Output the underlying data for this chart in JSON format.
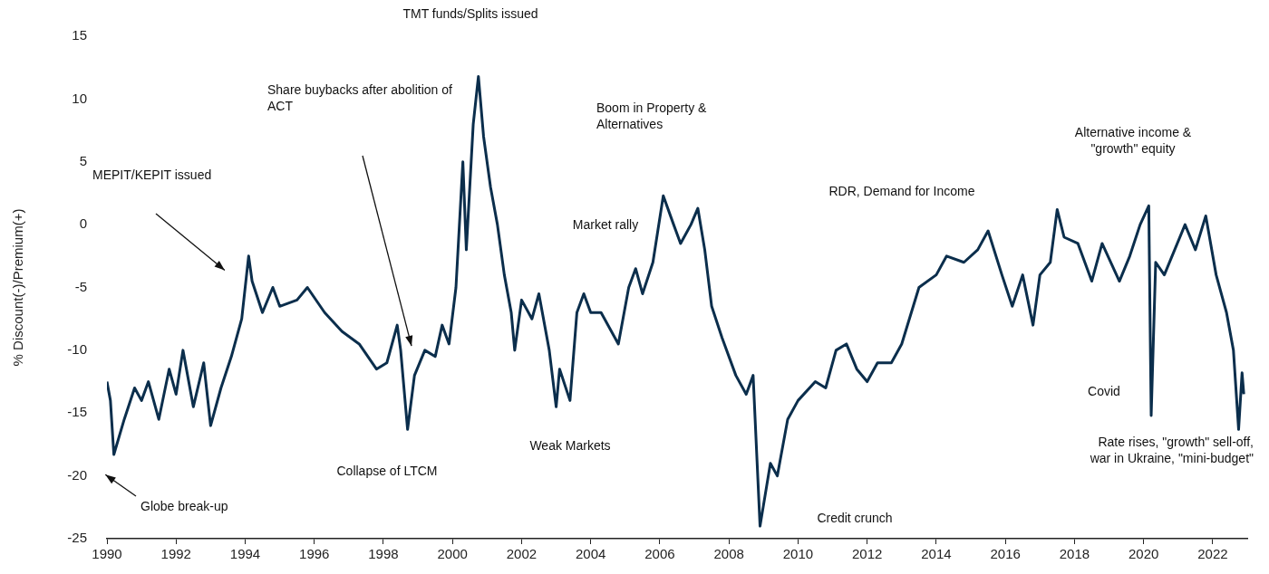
{
  "chart_data": {
    "type": "line",
    "ylabel": "% Discount(-)/Premium(+)",
    "xlim": [
      1990,
      2023
    ],
    "xticks": [
      1990,
      1992,
      1994,
      1996,
      1998,
      2000,
      2002,
      2004,
      2006,
      2008,
      2010,
      2012,
      2014,
      2016,
      2018,
      2020,
      2022
    ],
    "ylim": [
      -25,
      15
    ],
    "yticks": [
      -25,
      -20,
      -15,
      -10,
      -5,
      0,
      5,
      10,
      15
    ],
    "grid": false,
    "legend": false,
    "marker": "none",
    "line_style": "solid",
    "series": [
      {
        "color": "#0b2e4c",
        "x": [
          1990.0,
          1990.1,
          1990.2,
          1990.5,
          1990.8,
          1991.0,
          1991.2,
          1991.5,
          1991.8,
          1992.0,
          1992.2,
          1992.5,
          1992.8,
          1993.0,
          1993.3,
          1993.6,
          1993.9,
          1994.1,
          1994.2,
          1994.5,
          1994.8,
          1995.0,
          1995.5,
          1995.8,
          1996.3,
          1996.8,
          1997.3,
          1997.8,
          1998.1,
          1998.4,
          1998.5,
          1998.7,
          1998.9,
          1999.2,
          1999.5,
          1999.7,
          1999.9,
          2000.1,
          2000.3,
          2000.4,
          2000.6,
          2000.75,
          2000.9,
          2001.1,
          2001.3,
          2001.5,
          2001.7,
          2001.8,
          2002.0,
          2002.3,
          2002.5,
          2002.8,
          2003.0,
          2003.1,
          2003.4,
          2003.6,
          2003.8,
          2004.0,
          2004.3,
          2004.8,
          2005.1,
          2005.3,
          2005.5,
          2005.8,
          2006.1,
          2006.4,
          2006.6,
          2006.9,
          2007.1,
          2007.3,
          2007.5,
          2007.8,
          2008.2,
          2008.5,
          2008.7,
          2008.9,
          2009.2,
          2009.4,
          2009.7,
          2010.0,
          2010.5,
          2010.8,
          2011.1,
          2011.4,
          2011.7,
          2012.0,
          2012.3,
          2012.7,
          2013.0,
          2013.5,
          2014.0,
          2014.3,
          2014.8,
          2015.2,
          2015.5,
          2015.9,
          2016.2,
          2016.5,
          2016.8,
          2017.0,
          2017.3,
          2017.5,
          2017.7,
          2018.1,
          2018.5,
          2018.8,
          2019.3,
          2019.6,
          2019.9,
          2020.15,
          2020.22,
          2020.35,
          2020.6,
          2020.9,
          2021.2,
          2021.5,
          2021.8,
          2022.1,
          2022.4,
          2022.6,
          2022.75,
          2022.85,
          2022.9
        ],
        "values": [
          -12.5,
          -14,
          -18.3,
          -15.5,
          -13,
          -14,
          -12.5,
          -15.5,
          -11.5,
          -13.5,
          -10,
          -14.5,
          -11,
          -16,
          -13,
          -10.5,
          -7.5,
          -2.5,
          -4.5,
          -7,
          -5,
          -6.5,
          -6,
          -5,
          -7,
          -8.5,
          -9.5,
          -11.5,
          -11,
          -8,
          -10,
          -16.3,
          -12,
          -10,
          -10.5,
          -8,
          -9.5,
          -5,
          5,
          -2,
          8,
          11.8,
          7,
          3,
          0,
          -4,
          -7,
          -10,
          -6,
          -7.5,
          -5.5,
          -10,
          -14.5,
          -11.5,
          -14,
          -7,
          -5.5,
          -7,
          -7,
          -9.5,
          -5,
          -3.5,
          -5.5,
          -3,
          2.3,
          0,
          -1.5,
          0,
          1.3,
          -2,
          -6.5,
          -9,
          -12,
          -13.5,
          -12,
          -24,
          -19,
          -20,
          -15.5,
          -14,
          -12.5,
          -13,
          -10,
          -9.5,
          -11.5,
          -12.5,
          -11,
          -11,
          -9.5,
          -5,
          -4,
          -2.5,
          -3,
          -2,
          -0.5,
          -4,
          -6.5,
          -4,
          -8,
          -4,
          -3,
          1.2,
          -1,
          -1.5,
          -4.5,
          -1.5,
          -4.5,
          -2.5,
          0,
          1.5,
          -15.2,
          -3,
          -4,
          -2,
          0,
          -2,
          0.7,
          -4,
          -7,
          -10,
          -16.3,
          -11.8,
          -13.5
        ]
      }
    ],
    "annotations": [
      "TMT funds/Splits issued",
      "Share buybacks after abolition of\nACT",
      "MEPIT/KEPIT issued",
      "Globe break-up",
      "Collapse of LTCM",
      "Weak Markets",
      "Market rally",
      "Boom in Property &\nAlternatives",
      "Credit crunch",
      "RDR, Demand for Income",
      "Alternative income &\n\"growth\" equity",
      "Covid",
      "Rate rises, \"growth\" sell-off,\nwar in Ukraine, \"mini-budget\""
    ]
  }
}
